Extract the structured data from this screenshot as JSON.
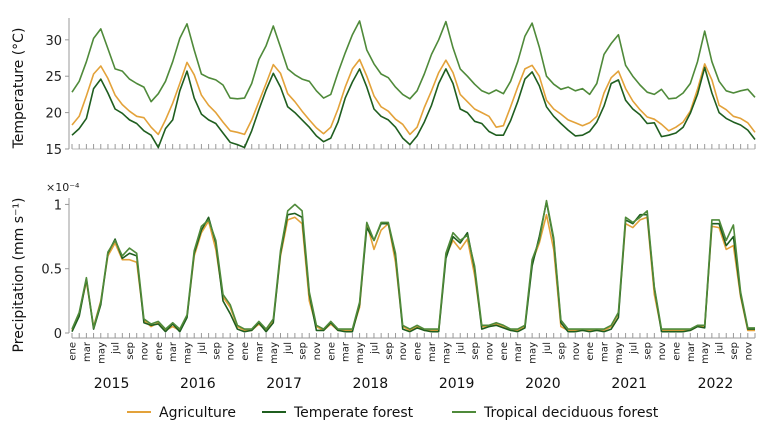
{
  "chart_data": [
    {
      "type": "line",
      "ylabel": "Temperature (°C)",
      "ylim": [
        15,
        33
      ],
      "yticks": [
        "15",
        "20",
        "25",
        "30"
      ],
      "x_start": "2015-01",
      "x_months": 96,
      "series": [
        {
          "name": "Agriculture",
          "color": "#E3A23A",
          "values": [
            18.3,
            19.5,
            22.3,
            25.3,
            26.4,
            24.7,
            22.4,
            21.1,
            20.2,
            19.5,
            19.3,
            18.0,
            17.0,
            19.0,
            21.3,
            24.0,
            26.9,
            25.2,
            22.4,
            21.0,
            20.0,
            18.7,
            17.5,
            17.3,
            17.0,
            19.0,
            21.5,
            24.0,
            26.6,
            25.4,
            22.6,
            21.5,
            20.2,
            19.0,
            17.9,
            17.1,
            18.0,
            20.5,
            23.5,
            26.0,
            27.3,
            25.0,
            22.3,
            20.8,
            20.2,
            19.1,
            18.4,
            17.0,
            18.0,
            20.7,
            23.0,
            25.5,
            27.2,
            25.5,
            22.5,
            21.5,
            20.5,
            20.0,
            19.5,
            18.0,
            18.2,
            20.8,
            23.5,
            26.0,
            26.5,
            25.0,
            21.7,
            20.5,
            19.8,
            19.0,
            18.6,
            18.2,
            18.6,
            19.5,
            22.7,
            24.8,
            25.7,
            23.3,
            21.6,
            20.4,
            19.4,
            19.1,
            18.4,
            17.5,
            18.0,
            18.7,
            20.2,
            23.2,
            26.7,
            24.5,
            21.0,
            20.4,
            19.5,
            19.2,
            18.6,
            17.3
          ]
        },
        {
          "name": "Temperate forest",
          "color": "#1F5E1F",
          "values": [
            16.9,
            17.8,
            19.2,
            23.3,
            24.6,
            22.7,
            20.5,
            19.9,
            19.0,
            18.5,
            17.5,
            16.9,
            15.2,
            17.8,
            19.0,
            23.0,
            25.7,
            22.0,
            19.8,
            19.0,
            18.5,
            17.2,
            15.9,
            15.6,
            15.2,
            17.5,
            20.4,
            23.1,
            25.4,
            23.5,
            20.8,
            20.0,
            19.0,
            18.0,
            16.8,
            16.0,
            16.5,
            18.7,
            22.0,
            24.2,
            26.0,
            23.5,
            20.5,
            19.5,
            19.0,
            18.0,
            16.5,
            15.6,
            16.8,
            18.7,
            21.0,
            24.0,
            26.0,
            24.0,
            20.5,
            20.0,
            18.8,
            18.5,
            17.4,
            16.9,
            16.9,
            18.9,
            21.5,
            24.6,
            25.6,
            23.7,
            20.8,
            19.5,
            18.5,
            17.6,
            16.8,
            16.9,
            17.4,
            18.7,
            20.9,
            24.0,
            24.5,
            21.7,
            20.5,
            19.7,
            18.5,
            18.6,
            16.7,
            16.9,
            17.2,
            18.0,
            19.9,
            22.5,
            26.2,
            22.7,
            20.0,
            19.2,
            18.7,
            18.3,
            17.6,
            16.3
          ]
        },
        {
          "name": "Tropical deciduous forest",
          "color": "#4F8A3A",
          "values": [
            22.8,
            24.3,
            27.0,
            30.2,
            31.5,
            28.8,
            26.0,
            25.7,
            24.6,
            24.0,
            23.5,
            21.5,
            22.6,
            24.3,
            27.0,
            30.2,
            32.2,
            28.6,
            25.3,
            24.8,
            24.5,
            23.8,
            22.0,
            21.9,
            22.0,
            24.0,
            27.3,
            29.2,
            31.9,
            29.0,
            26.0,
            25.2,
            24.6,
            24.3,
            23.0,
            22.0,
            22.5,
            25.5,
            28.2,
            30.7,
            32.6,
            28.6,
            26.7,
            25.3,
            24.8,
            23.5,
            22.5,
            21.9,
            23.0,
            25.3,
            28.0,
            30.0,
            32.5,
            28.9,
            26.0,
            25.0,
            23.9,
            23.0,
            22.6,
            23.1,
            22.6,
            24.3,
            27.0,
            30.5,
            32.3,
            29.0,
            25.0,
            23.9,
            23.2,
            23.5,
            23.0,
            23.3,
            22.5,
            24.0,
            28.0,
            29.5,
            30.7,
            26.5,
            25.0,
            23.8,
            22.8,
            22.5,
            23.2,
            21.9,
            22.0,
            22.7,
            24.0,
            27.0,
            31.2,
            27.0,
            24.3,
            23.0,
            22.7,
            23.0,
            23.2,
            22.1
          ]
        }
      ]
    },
    {
      "type": "line",
      "ylabel": "Precipitation (mm s⁻¹)",
      "yexponent": "×10⁻⁴",
      "ylim": [
        0,
        1.05
      ],
      "yticks": [
        "0",
        "0.5",
        "1"
      ],
      "x_start": "2015-01",
      "x_months": 96,
      "series": [
        {
          "name": "Agriculture",
          "color": "#E3A23A",
          "values": [
            0.02,
            0.15,
            0.4,
            0.05,
            0.25,
            0.6,
            0.7,
            0.57,
            0.57,
            0.55,
            0.1,
            0.05,
            0.08,
            0.02,
            0.05,
            0.02,
            0.13,
            0.6,
            0.78,
            0.87,
            0.65,
            0.28,
            0.2,
            0.05,
            0.02,
            0.02,
            0.07,
            0.02,
            0.1,
            0.6,
            0.88,
            0.9,
            0.85,
            0.25,
            0.05,
            0.02,
            0.07,
            0.02,
            0.02,
            0.02,
            0.2,
            0.85,
            0.65,
            0.8,
            0.85,
            0.55,
            0.05,
            0.02,
            0.05,
            0.02,
            0.02,
            0.02,
            0.6,
            0.72,
            0.65,
            0.73,
            0.45,
            0.05,
            0.05,
            0.07,
            0.05,
            0.02,
            0.02,
            0.05,
            0.55,
            0.7,
            0.92,
            0.65,
            0.05,
            0.02,
            0.02,
            0.02,
            0.02,
            0.02,
            0.02,
            0.05,
            0.15,
            0.85,
            0.82,
            0.88,
            0.9,
            0.3,
            0.02,
            0.02,
            0.02,
            0.02,
            0.02,
            0.05,
            0.05,
            0.83,
            0.82,
            0.65,
            0.68,
            0.28,
            0.02,
            0.02
          ]
        },
        {
          "name": "Temperate forest",
          "color": "#1F5E1F",
          "values": [
            0.01,
            0.13,
            0.42,
            0.03,
            0.22,
            0.62,
            0.73,
            0.58,
            0.62,
            0.6,
            0.08,
            0.06,
            0.07,
            0.01,
            0.07,
            0.01,
            0.12,
            0.62,
            0.8,
            0.9,
            0.7,
            0.25,
            0.15,
            0.03,
            0.01,
            0.02,
            0.08,
            0.01,
            0.08,
            0.62,
            0.92,
            0.93,
            0.9,
            0.3,
            0.02,
            0.02,
            0.08,
            0.02,
            0.01,
            0.01,
            0.22,
            0.82,
            0.72,
            0.85,
            0.85,
            0.6,
            0.03,
            0.01,
            0.04,
            0.02,
            0.01,
            0.01,
            0.58,
            0.75,
            0.7,
            0.78,
            0.5,
            0.03,
            0.05,
            0.06,
            0.04,
            0.02,
            0.01,
            0.04,
            0.52,
            0.75,
            1.02,
            0.72,
            0.08,
            0.01,
            0.01,
            0.02,
            0.01,
            0.02,
            0.01,
            0.03,
            0.12,
            0.88,
            0.85,
            0.92,
            0.92,
            0.35,
            0.01,
            0.01,
            0.01,
            0.01,
            0.02,
            0.05,
            0.04,
            0.85,
            0.85,
            0.68,
            0.75,
            0.3,
            0.03,
            0.03
          ]
        },
        {
          "name": "Tropical deciduous forest",
          "color": "#4F8A3A",
          "values": [
            0.03,
            0.16,
            0.43,
            0.04,
            0.24,
            0.63,
            0.72,
            0.6,
            0.66,
            0.62,
            0.11,
            0.07,
            0.09,
            0.03,
            0.08,
            0.03,
            0.14,
            0.64,
            0.83,
            0.88,
            0.72,
            0.3,
            0.22,
            0.06,
            0.03,
            0.03,
            0.09,
            0.03,
            0.11,
            0.64,
            0.95,
            1.0,
            0.95,
            0.32,
            0.06,
            0.03,
            0.09,
            0.03,
            0.03,
            0.03,
            0.24,
            0.86,
            0.72,
            0.86,
            0.86,
            0.62,
            0.06,
            0.03,
            0.06,
            0.03,
            0.03,
            0.03,
            0.62,
            0.78,
            0.72,
            0.76,
            0.52,
            0.06,
            0.06,
            0.08,
            0.06,
            0.03,
            0.03,
            0.06,
            0.57,
            0.72,
            1.03,
            0.74,
            0.1,
            0.03,
            0.03,
            0.03,
            0.03,
            0.03,
            0.03,
            0.06,
            0.16,
            0.9,
            0.86,
            0.9,
            0.95,
            0.36,
            0.03,
            0.03,
            0.03,
            0.03,
            0.03,
            0.06,
            0.06,
            0.88,
            0.88,
            0.72,
            0.84,
            0.32,
            0.04,
            0.04
          ]
        }
      ]
    }
  ],
  "month_labels": [
    "ene",
    "mar",
    "may",
    "jul",
    "sep",
    "nov"
  ],
  "years": [
    "2015",
    "2016",
    "2017",
    "2018",
    "2019",
    "2020",
    "2021",
    "2022"
  ],
  "legend": [
    {
      "label": "Agriculture",
      "color": "#E3A23A"
    },
    {
      "label": "Temperate forest",
      "color": "#1F5E1F"
    },
    {
      "label": "Tropical deciduous forest",
      "color": "#4F8A3A"
    }
  ]
}
